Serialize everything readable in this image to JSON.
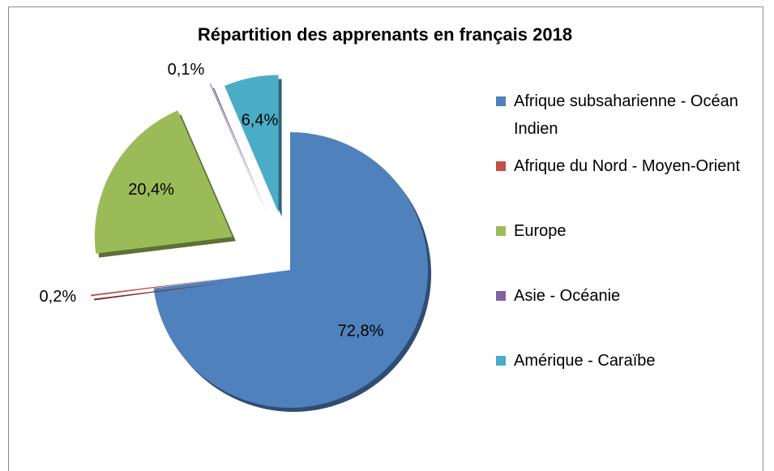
{
  "chart_data": {
    "type": "pie",
    "title": "Répartition des apprenants en français 2018",
    "categories": [
      "Afrique subsaharienne - Océan Indien",
      "Afrique du Nord - Moyen-Orient",
      "Europe",
      "Asie - Océanie",
      "Amérique - Caraïbe"
    ],
    "values": [
      72.8,
      0.2,
      20.4,
      0.1,
      6.4
    ],
    "value_labels": [
      "72,8%",
      "0,2%",
      "20,4%",
      "0,1%",
      "6,4%"
    ],
    "colors": [
      "#4f81bd",
      "#c0504d",
      "#9bbb59",
      "#8064a2",
      "#4bacc6"
    ],
    "legend": "right"
  }
}
